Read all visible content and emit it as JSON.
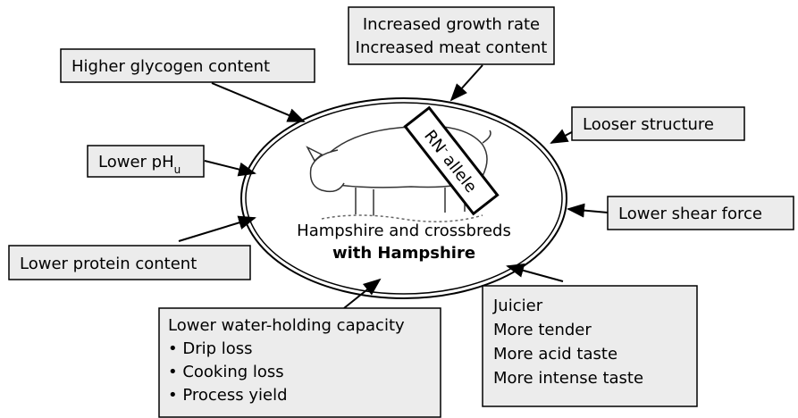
{
  "center": {
    "title": "Hampshire and crossbreds",
    "subtitle": "with Hampshire",
    "allele": {
      "base": "RN",
      "superscript": "-",
      "rest": "allele"
    }
  },
  "nodes": [
    {
      "lines": [
        "Higher glycogen content"
      ]
    },
    {
      "lines": [
        "Increased growth rate",
        "Increased meat content"
      ]
    },
    {
      "lines": [
        "Looser structure"
      ]
    },
    {
      "label": {
        "text": "Lower pH",
        "subscript": "u"
      }
    },
    {
      "lines": [
        "Lower shear force"
      ]
    },
    {
      "lines": [
        "Lower protein content"
      ]
    },
    {
      "lines": [
        "Lower water-holding capacity",
        "• Drip loss",
        "• Cooking loss",
        "• Process yield"
      ]
    },
    {
      "lines": [
        "Juicier",
        "More tender",
        "More acid taste",
        "More intense taste"
      ]
    }
  ]
}
